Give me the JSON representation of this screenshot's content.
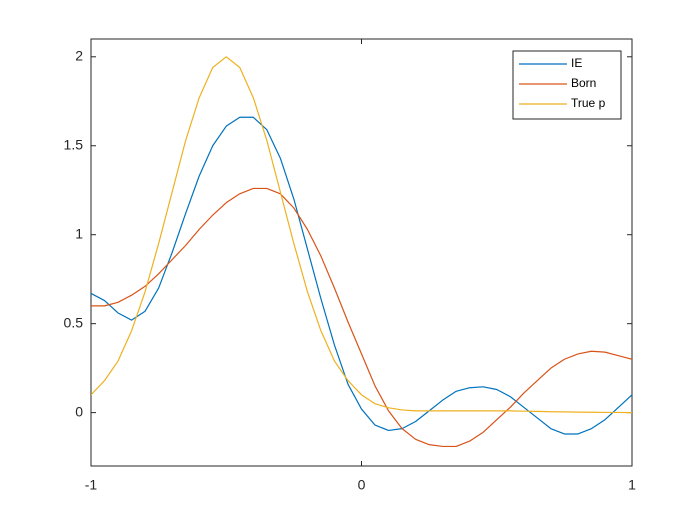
{
  "chart_data": {
    "type": "line",
    "x": [
      -1,
      -0.95,
      -0.9,
      -0.85,
      -0.8,
      -0.75,
      -0.7,
      -0.65,
      -0.6,
      -0.55,
      -0.5,
      -0.45,
      -0.4,
      -0.35,
      -0.3,
      -0.25,
      -0.2,
      -0.15,
      -0.1,
      -0.05,
      0,
      0.05,
      0.1,
      0.15,
      0.2,
      0.25,
      0.3,
      0.35,
      0.4,
      0.45,
      0.5,
      0.55,
      0.6,
      0.65,
      0.7,
      0.75,
      0.8,
      0.85,
      0.9,
      0.95,
      1
    ],
    "series": [
      {
        "name": "IE",
        "color": "#0072BD",
        "values": [
          0.67,
          0.63,
          0.56,
          0.52,
          0.57,
          0.7,
          0.9,
          1.12,
          1.33,
          1.5,
          1.61,
          1.66,
          1.66,
          1.59,
          1.43,
          1.2,
          0.92,
          0.64,
          0.38,
          0.16,
          0.02,
          -0.07,
          -0.1,
          -0.09,
          -0.05,
          0.01,
          0.07,
          0.12,
          0.14,
          0.145,
          0.13,
          0.09,
          0.03,
          -0.03,
          -0.09,
          -0.12,
          -0.12,
          -0.09,
          -0.04,
          0.03,
          0.1
        ]
      },
      {
        "name": "Born",
        "color": "#D95319",
        "values": [
          0.6,
          0.6,
          0.62,
          0.66,
          0.71,
          0.78,
          0.86,
          0.94,
          1.03,
          1.11,
          1.18,
          1.23,
          1.26,
          1.26,
          1.23,
          1.15,
          1.03,
          0.88,
          0.7,
          0.51,
          0.33,
          0.15,
          0.01,
          -0.09,
          -0.15,
          -0.18,
          -0.19,
          -0.19,
          -0.16,
          -0.11,
          -0.04,
          0.03,
          0.11,
          0.18,
          0.25,
          0.3,
          0.33,
          0.345,
          0.34,
          0.32,
          0.3
        ]
      },
      {
        "name": "True p",
        "color": "#EDB120",
        "values": [
          0.1,
          0.18,
          0.29,
          0.46,
          0.68,
          0.95,
          1.24,
          1.53,
          1.77,
          1.94,
          2.0,
          1.94,
          1.77,
          1.53,
          1.24,
          0.95,
          0.68,
          0.46,
          0.29,
          0.18,
          0.1,
          0.05,
          0.027,
          0.015,
          0.01,
          0.01,
          0.01,
          0.01,
          0.01,
          0.01,
          0.01,
          0.01,
          0.008,
          0.007,
          0.005,
          0.004,
          0.003,
          0.002,
          0.001,
          0.001,
          0.0
        ]
      }
    ],
    "xlim": [
      -1,
      1
    ],
    "xticks": [
      -1,
      0,
      1
    ],
    "ylim": [
      -0.3,
      2.1
    ],
    "yticks": [
      0,
      0.5,
      1,
      1.5,
      2
    ],
    "legend": "northeast"
  }
}
